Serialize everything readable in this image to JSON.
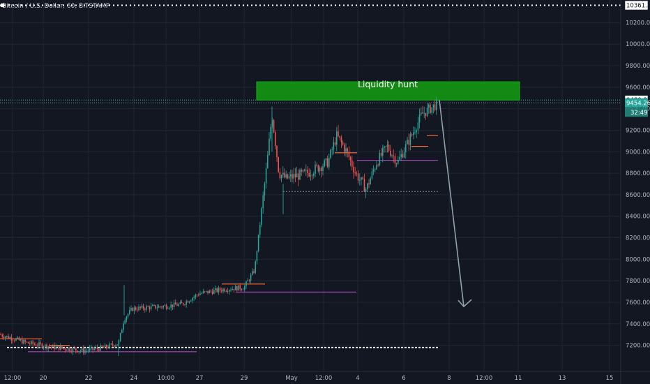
{
  "title": "Bitcoin / U.S. Dollar, 60, BITSTAMP",
  "chart_data": {
    "type": "candlestick",
    "symbol": "Bitcoin / U.S. Dollar",
    "interval": "60",
    "exchange": "BITSTAMP",
    "ylim": [
      7100,
      10450
    ],
    "y_ticks": [
      "7200.00",
      "7400.00",
      "7600.00",
      "7800.00",
      "8000.00",
      "8200.00",
      "8400.00",
      "8600.00",
      "8800.00",
      "9000.00",
      "9200.00",
      "9400.00",
      "9600.00",
      "9800.00",
      "10000.00",
      "10200.00"
    ],
    "x_ticks": [
      "12:00",
      "20",
      "22",
      "24",
      "10:00",
      "27",
      "29",
      "May",
      "12:00",
      "4",
      "6",
      "8",
      "12:00",
      "11",
      "13",
      "15"
    ],
    "price_labels": {
      "dotted_level": "10361.35",
      "upper_level": "9480.84",
      "last_price": "9454.26",
      "countdown": "32:49"
    },
    "levels": {
      "dotted_white": 10361.35,
      "upper_teal": 9480.84,
      "lower_teal": 9454.26,
      "white_support": 7180
    },
    "annotation": {
      "text": "Liquidity hunt",
      "zone_low": 9480,
      "zone_high": 9650
    },
    "approx_price_path": [
      [
        0,
        7300
      ],
      [
        40,
        7220
      ],
      [
        80,
        7180
      ],
      [
        120,
        7150
      ],
      [
        150,
        7180
      ],
      [
        170,
        7220
      ],
      [
        178,
        7450
      ],
      [
        190,
        7540
      ],
      [
        230,
        7560
      ],
      [
        260,
        7580
      ],
      [
        285,
        7680
      ],
      [
        320,
        7720
      ],
      [
        350,
        7740
      ],
      [
        365,
        7900
      ],
      [
        375,
        8450
      ],
      [
        383,
        8900
      ],
      [
        390,
        9350
      ],
      [
        400,
        8800
      ],
      [
        410,
        8750
      ],
      [
        440,
        8800
      ],
      [
        470,
        8900
      ],
      [
        483,
        9150
      ],
      [
        497,
        9000
      ],
      [
        510,
        8800
      ],
      [
        525,
        8650
      ],
      [
        540,
        8900
      ],
      [
        555,
        9050
      ],
      [
        570,
        8900
      ],
      [
        590,
        9150
      ],
      [
        605,
        9350
      ],
      [
        628,
        9450
      ]
    ],
    "projection": {
      "from_x": 630,
      "from_price": 9480,
      "to_x": 665,
      "to_price": 7560
    },
    "colors": {
      "background": "#131722",
      "grid": "#232632",
      "up": "#26a69a",
      "down": "#ef5350",
      "zone": "#138a13",
      "teal_line": "#4db6ac",
      "magenta": "#ab47bc",
      "orange": "#ff7043",
      "gray_line": "#787b86",
      "arrow": "#8fa3ad",
      "label_bg": "#ffffff",
      "last_label_bg": "#26a69a",
      "countdown_bg": "#1e7d74"
    }
  }
}
